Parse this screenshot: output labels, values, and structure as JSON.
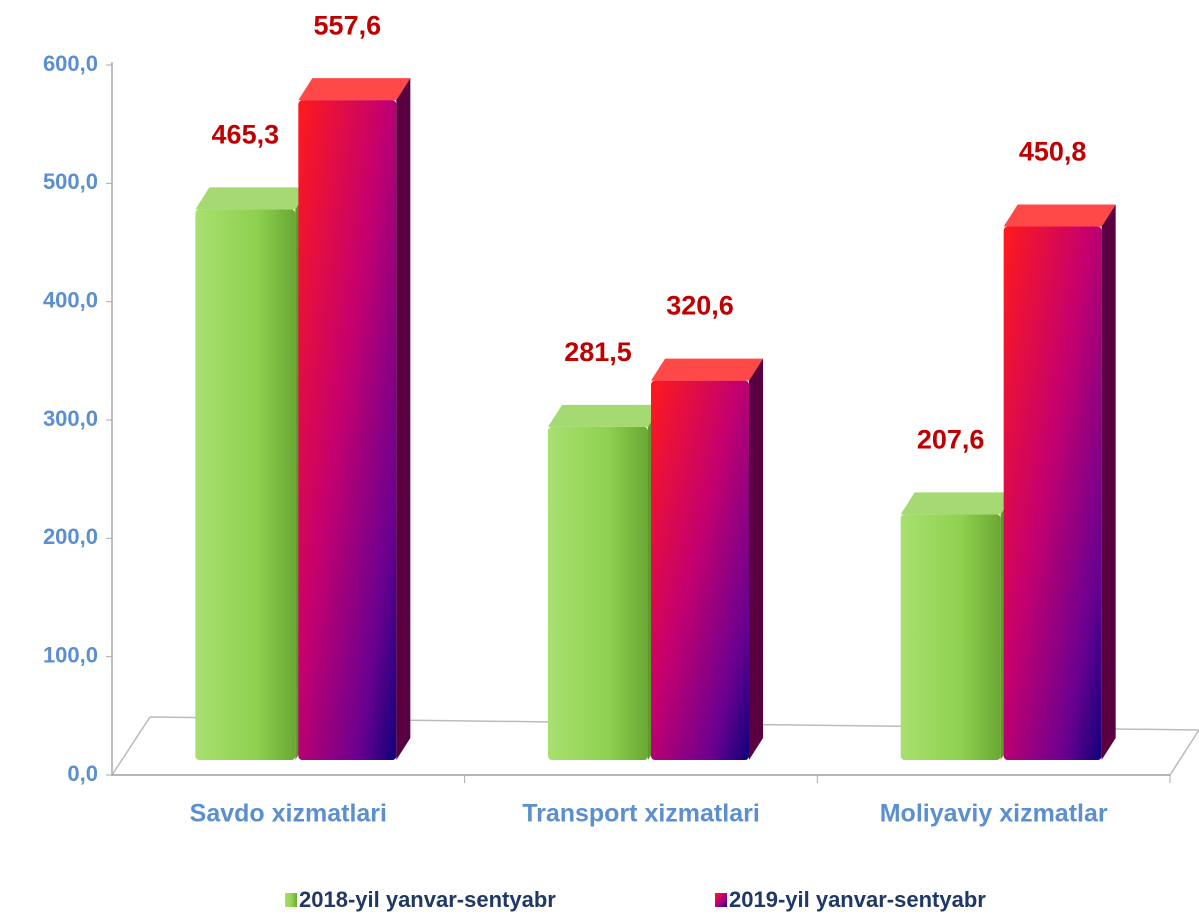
{
  "chart_data": {
    "type": "bar",
    "categories": [
      "Savdo xizmatlari",
      "Transport xizmatlari",
      "Moliyaviy xizmatlar"
    ],
    "series": [
      {
        "name": "2018-yil yanvar-sentyabr",
        "color": "#8fd14f",
        "values": [
          465.3,
          281.5,
          207.6
        ],
        "value_labels": [
          "465,3",
          "281,5",
          "207,6"
        ]
      },
      {
        "name": "2019-yil yanvar-sentyabr",
        "color": "#ff1a1a",
        "values": [
          557.6,
          320.6,
          450.8
        ],
        "value_labels": [
          "557,6",
          "320,6",
          "450,8"
        ]
      }
    ],
    "ylim": [
      0,
      600
    ],
    "yticks": [
      {
        "value": 0,
        "label": "0,0"
      },
      {
        "value": 100,
        "label": "100,0"
      },
      {
        "value": 200,
        "label": "200,0"
      },
      {
        "value": 300,
        "label": "300,0"
      },
      {
        "value": 400,
        "label": "400,0"
      },
      {
        "value": 500,
        "label": "500,0"
      },
      {
        "value": 600,
        "label": "600,0"
      }
    ],
    "legend": "bottom"
  }
}
